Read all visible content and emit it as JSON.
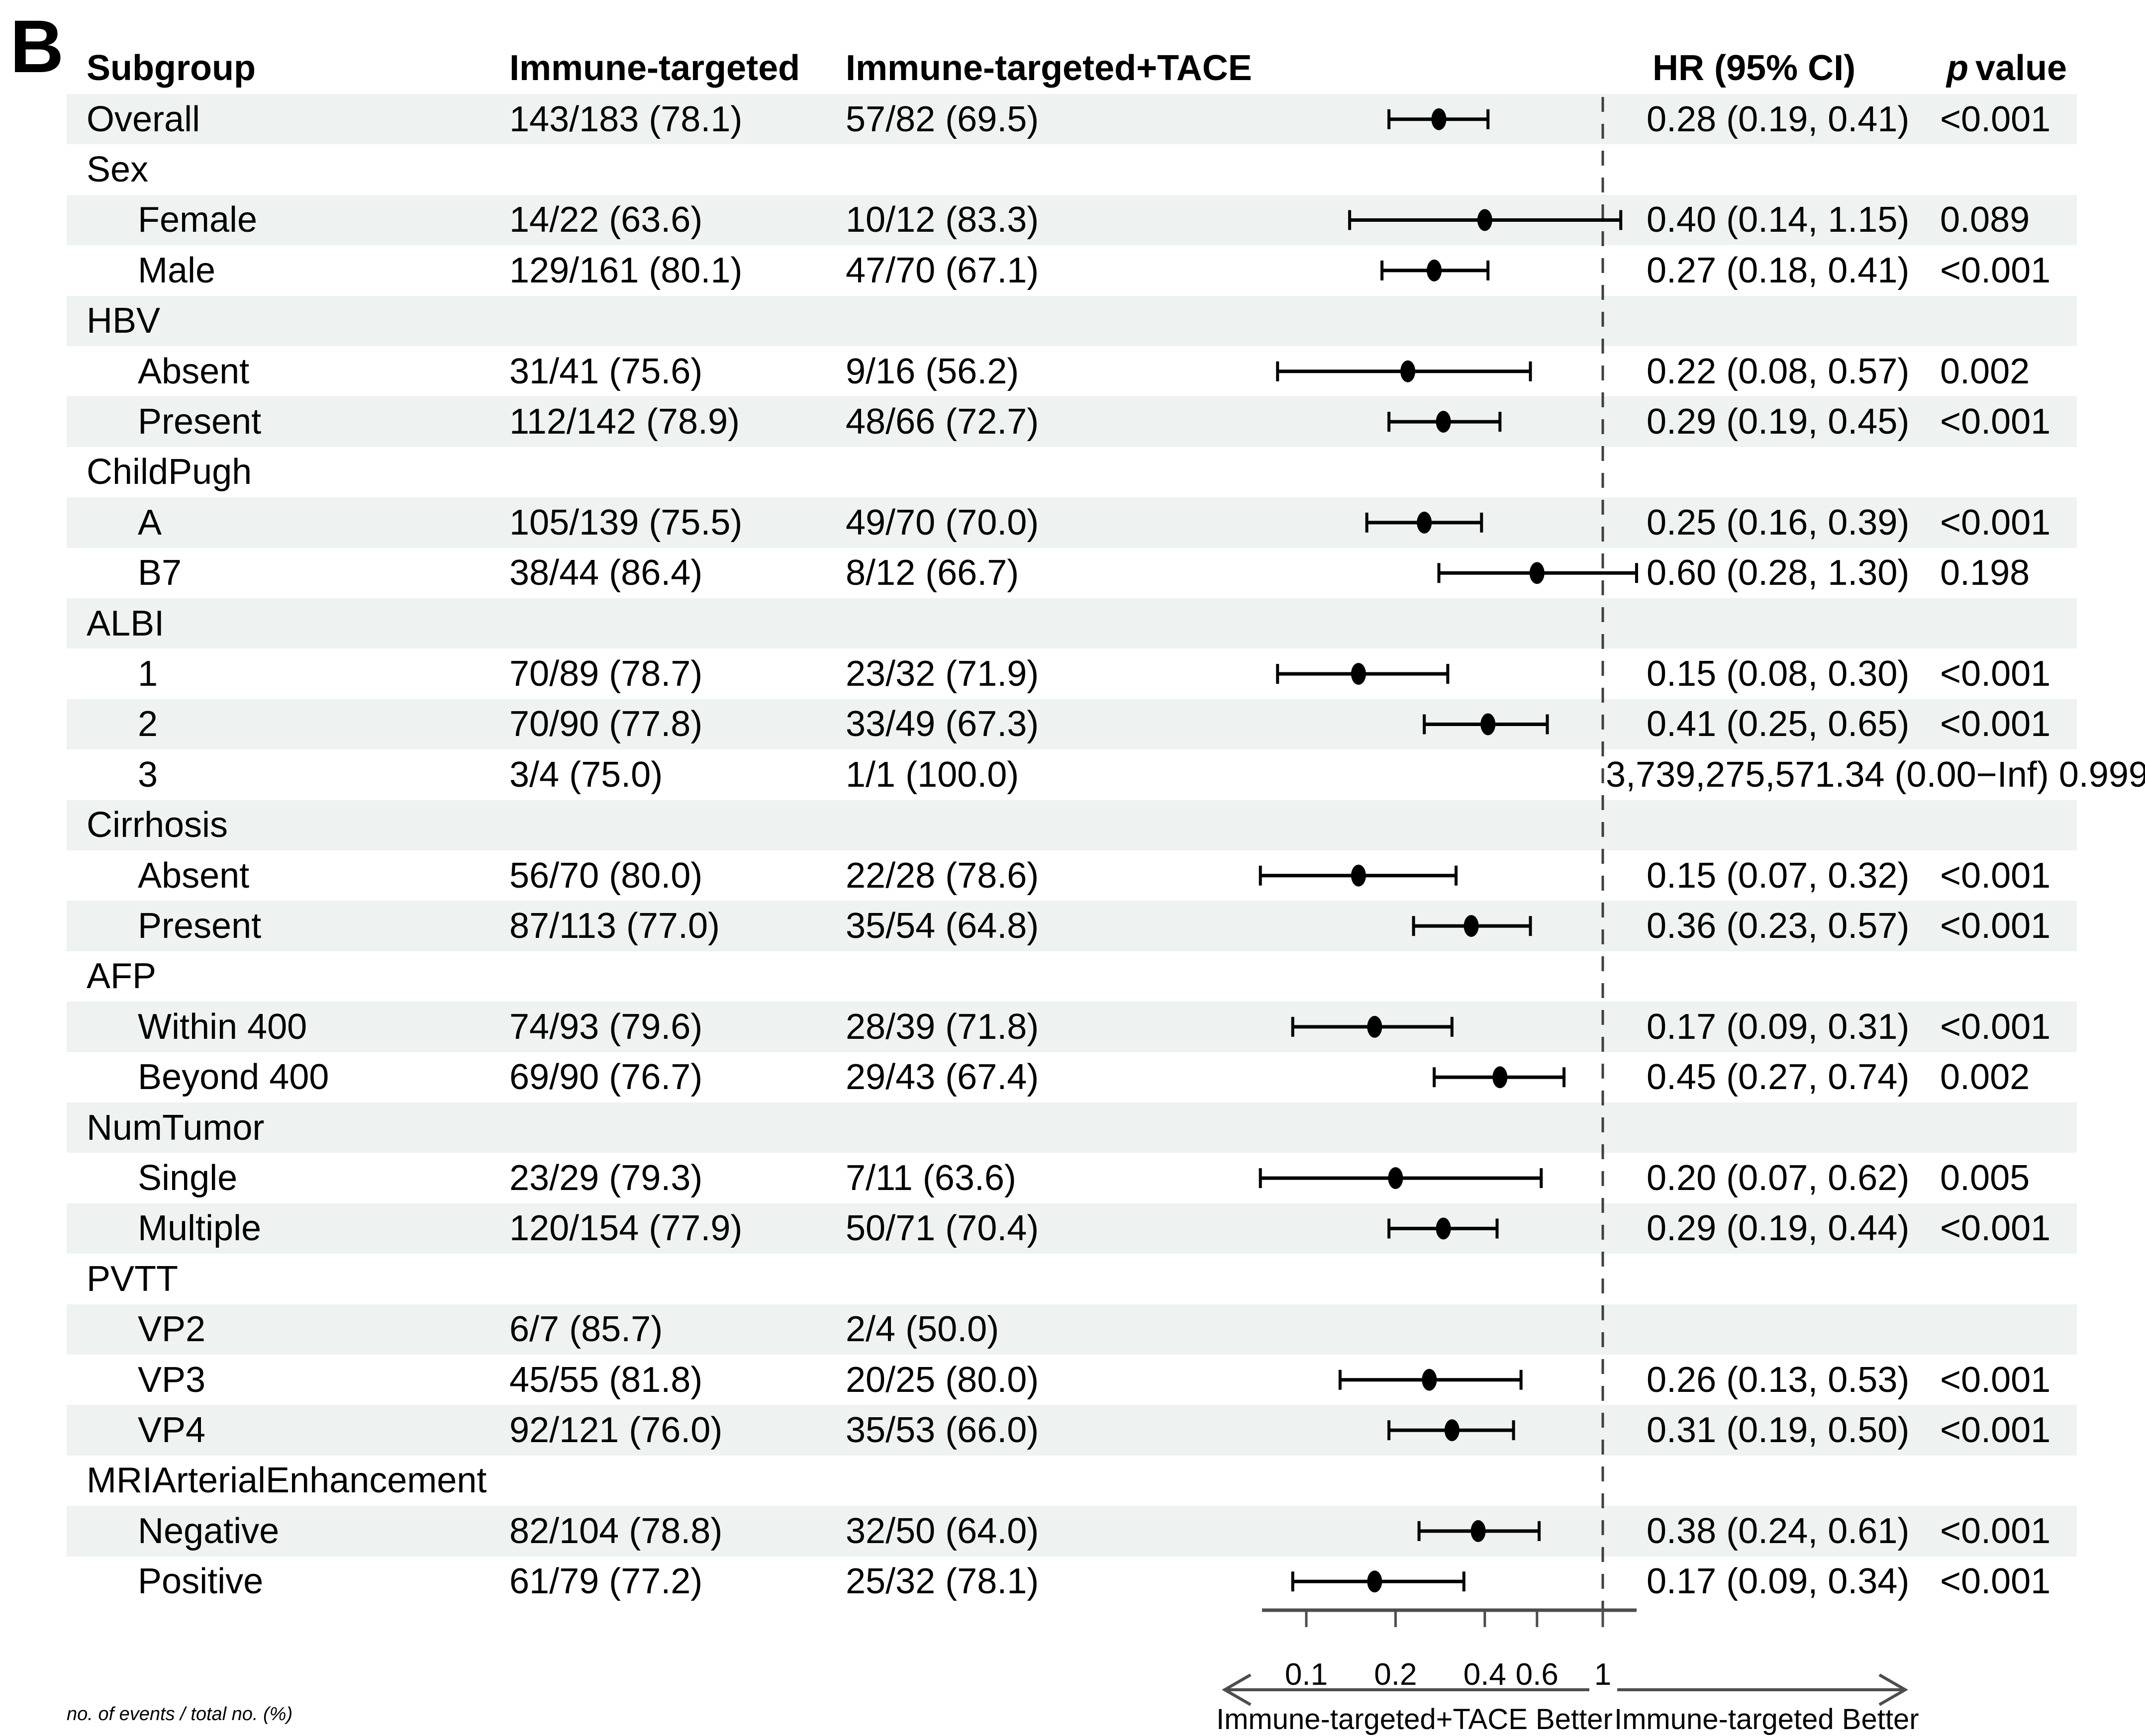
{
  "panel_label": "B",
  "header": {
    "subgroup_label": "Subgroup",
    "immune_targeted_label": "Immune-targeted",
    "immune_targeted_tace_label": "Immune-targeted+TACE",
    "hr_label": "HR (95% CI)",
    "p_label_italic": "p",
    "p_label_rest": "value"
  },
  "footnote": "no. of events / total no. (%)",
  "colors": {
    "band": "#eef2f1",
    "text": "#000000",
    "axis": "#4d4d4d",
    "marker": "#000000",
    "reference_line": "#404040"
  },
  "chart_data": {
    "type": "forest",
    "x_scale": "log10",
    "reference_line": 1,
    "xlim": [
      0.055,
      1.3
    ],
    "axis_ticks": [
      0.1,
      0.2,
      0.4,
      0.6,
      1
    ],
    "axis_tick_labels": [
      "0.1",
      "0.2",
      "0.4",
      "0.6",
      "1"
    ],
    "left_arrow_label": "Immune-targeted+TACE Better",
    "right_arrow_label": "Immune-targeted Better",
    "columns": [
      "Subgroup",
      "Immune-targeted",
      "Immune-targeted+TACE",
      "HR (95% CI)",
      "p value"
    ],
    "rows": [
      {
        "label": "Overall",
        "indent": 0,
        "group": false,
        "events_it": "143/183 (78.1)",
        "events_tace": "57/82 (69.5)",
        "hr_text": "0.28 (0.19, 0.41)",
        "p_text": "<0.001",
        "est": 0.28,
        "lo": 0.19,
        "hi": 0.41,
        "shaded": true
      },
      {
        "label": "Sex",
        "indent": 0,
        "group": true,
        "shaded": false
      },
      {
        "label": "Female",
        "indent": 1,
        "group": false,
        "events_it": "14/22 (63.6)",
        "events_tace": "10/12 (83.3)",
        "hr_text": "0.40 (0.14, 1.15)",
        "p_text": "0.089",
        "est": 0.4,
        "lo": 0.14,
        "hi": 1.15,
        "shaded": true
      },
      {
        "label": "Male",
        "indent": 1,
        "group": false,
        "events_it": "129/161 (80.1)",
        "events_tace": "47/70 (67.1)",
        "hr_text": "0.27 (0.18, 0.41)",
        "p_text": "<0.001",
        "est": 0.27,
        "lo": 0.18,
        "hi": 0.41,
        "shaded": false
      },
      {
        "label": "HBV",
        "indent": 0,
        "group": true,
        "shaded": true
      },
      {
        "label": "Absent",
        "indent": 1,
        "group": false,
        "events_it": "31/41 (75.6)",
        "events_tace": "9/16 (56.2)",
        "hr_text": "0.22 (0.08, 0.57)",
        "p_text": "0.002",
        "est": 0.22,
        "lo": 0.08,
        "hi": 0.57,
        "shaded": false
      },
      {
        "label": "Present",
        "indent": 1,
        "group": false,
        "events_it": "112/142 (78.9)",
        "events_tace": "48/66 (72.7)",
        "hr_text": "0.29 (0.19, 0.45)",
        "p_text": "<0.001",
        "est": 0.29,
        "lo": 0.19,
        "hi": 0.45,
        "shaded": true
      },
      {
        "label": "ChildPugh",
        "indent": 0,
        "group": true,
        "shaded": false
      },
      {
        "label": "A",
        "indent": 1,
        "group": false,
        "events_it": "105/139 (75.5)",
        "events_tace": "49/70 (70.0)",
        "hr_text": "0.25 (0.16, 0.39)",
        "p_text": "<0.001",
        "est": 0.25,
        "lo": 0.16,
        "hi": 0.39,
        "shaded": true
      },
      {
        "label": "B7",
        "indent": 1,
        "group": false,
        "events_it": "38/44 (86.4)",
        "events_tace": "8/12 (66.7)",
        "hr_text": "0.60 (0.28, 1.30)",
        "p_text": "0.198",
        "est": 0.6,
        "lo": 0.28,
        "hi": 1.3,
        "shaded": false
      },
      {
        "label": "ALBI",
        "indent": 0,
        "group": true,
        "shaded": true
      },
      {
        "label": "1",
        "indent": 1,
        "group": false,
        "events_it": "70/89 (78.7)",
        "events_tace": "23/32 (71.9)",
        "hr_text": "0.15 (0.08, 0.30)",
        "p_text": "<0.001",
        "est": 0.15,
        "lo": 0.08,
        "hi": 0.3,
        "shaded": false
      },
      {
        "label": "2",
        "indent": 1,
        "group": false,
        "events_it": "70/90 (77.8)",
        "events_tace": "33/49 (67.3)",
        "hr_text": "0.41 (0.25, 0.65)",
        "p_text": "<0.001",
        "est": 0.41,
        "lo": 0.25,
        "hi": 0.65,
        "shaded": true
      },
      {
        "label": "3",
        "indent": 1,
        "group": false,
        "events_it": "3/4 (75.0)",
        "events_tace": "1/1 (100.0)",
        "overflow_text": "3,739,275,571.34 (0.00−Inf) 0.999",
        "shaded": false
      },
      {
        "label": "Cirrhosis",
        "indent": 0,
        "group": true,
        "shaded": true
      },
      {
        "label": "Absent",
        "indent": 1,
        "group": false,
        "events_it": "56/70 (80.0)",
        "events_tace": "22/28 (78.6)",
        "hr_text": "0.15 (0.07, 0.32)",
        "p_text": "<0.001",
        "est": 0.15,
        "lo": 0.07,
        "hi": 0.32,
        "shaded": false
      },
      {
        "label": "Present",
        "indent": 1,
        "group": false,
        "events_it": "87/113 (77.0)",
        "events_tace": "35/54 (64.8)",
        "hr_text": "0.36 (0.23, 0.57)",
        "p_text": "<0.001",
        "est": 0.36,
        "lo": 0.23,
        "hi": 0.57,
        "shaded": true
      },
      {
        "label": "AFP",
        "indent": 0,
        "group": true,
        "shaded": false
      },
      {
        "label": "Within 400",
        "indent": 1,
        "group": false,
        "events_it": "74/93 (79.6)",
        "events_tace": "28/39 (71.8)",
        "hr_text": "0.17 (0.09, 0.31)",
        "p_text": "<0.001",
        "est": 0.17,
        "lo": 0.09,
        "hi": 0.31,
        "shaded": true
      },
      {
        "label": "Beyond 400",
        "indent": 1,
        "group": false,
        "events_it": "69/90 (76.7)",
        "events_tace": "29/43 (67.4)",
        "hr_text": "0.45 (0.27, 0.74)",
        "p_text": "0.002",
        "est": 0.45,
        "lo": 0.27,
        "hi": 0.74,
        "shaded": false
      },
      {
        "label": "NumTumor",
        "indent": 0,
        "group": true,
        "shaded": true
      },
      {
        "label": "Single",
        "indent": 1,
        "group": false,
        "events_it": "23/29 (79.3)",
        "events_tace": "7/11 (63.6)",
        "hr_text": "0.20 (0.07, 0.62)",
        "p_text": "0.005",
        "est": 0.2,
        "lo": 0.07,
        "hi": 0.62,
        "shaded": false
      },
      {
        "label": "Multiple",
        "indent": 1,
        "group": false,
        "events_it": "120/154 (77.9)",
        "events_tace": "50/71 (70.4)",
        "hr_text": "0.29 (0.19, 0.44)",
        "p_text": "<0.001",
        "est": 0.29,
        "lo": 0.19,
        "hi": 0.44,
        "shaded": true
      },
      {
        "label": "PVTT",
        "indent": 0,
        "group": true,
        "shaded": false
      },
      {
        "label": "VP2",
        "indent": 1,
        "group": false,
        "events_it": "6/7 (85.7)",
        "events_tace": "2/4 (50.0)",
        "shaded": true
      },
      {
        "label": "VP3",
        "indent": 1,
        "group": false,
        "events_it": "45/55 (81.8)",
        "events_tace": "20/25 (80.0)",
        "hr_text": "0.26 (0.13, 0.53)",
        "p_text": "<0.001",
        "est": 0.26,
        "lo": 0.13,
        "hi": 0.53,
        "shaded": false
      },
      {
        "label": "VP4",
        "indent": 1,
        "group": false,
        "events_it": "92/121 (76.0)",
        "events_tace": "35/53 (66.0)",
        "hr_text": "0.31 (0.19, 0.50)",
        "p_text": "<0.001",
        "est": 0.31,
        "lo": 0.19,
        "hi": 0.5,
        "shaded": true
      },
      {
        "label": "MRIArterialEnhancement",
        "indent": 0,
        "group": true,
        "shaded": false
      },
      {
        "label": "Negative",
        "indent": 1,
        "group": false,
        "events_it": "82/104 (78.8)",
        "events_tace": "32/50 (64.0)",
        "hr_text": "0.38 (0.24, 0.61)",
        "p_text": "<0.001",
        "est": 0.38,
        "lo": 0.24,
        "hi": 0.61,
        "shaded": true
      },
      {
        "label": "Positive",
        "indent": 1,
        "group": false,
        "events_it": "61/79 (77.2)",
        "events_tace": "25/32 (78.1)",
        "hr_text": "0.17 (0.09, 0.34)",
        "p_text": "<0.001",
        "est": 0.17,
        "lo": 0.09,
        "hi": 0.34,
        "shaded": false
      }
    ]
  }
}
